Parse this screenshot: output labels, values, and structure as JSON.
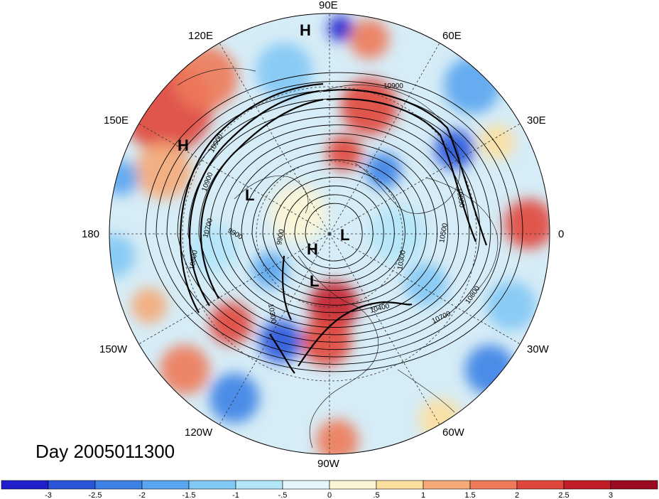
{
  "map": {
    "date_label": "Day 2005011300",
    "longitude_labels": [
      "90E",
      "60E",
      "30E",
      "0",
      "30W",
      "60W",
      "90W",
      "120W",
      "150W",
      "180",
      "150E",
      "120E"
    ],
    "pressure_centers": [
      "H",
      "H",
      "L",
      "L",
      "H",
      "L"
    ],
    "contour_labels": [
      "10900",
      "10900",
      "10900",
      "10800",
      "10700",
      "9900",
      "9900",
      "10300",
      "10800",
      "10500",
      "10300",
      "10400",
      "10700",
      "10800"
    ]
  },
  "colorbar": {
    "ticks": [
      "-3",
      "-2.5",
      "-2",
      "-1.5",
      "-1",
      "-.5",
      "0",
      ".5",
      "1",
      "1.5",
      "2",
      "2.5",
      "3"
    ],
    "colors": [
      "#1e1ecc",
      "#2a55d9",
      "#3c82e6",
      "#5aa5ef",
      "#82c8f5",
      "#b4e6fa",
      "#e6f6fc",
      "#fdf6d6",
      "#fde0a0",
      "#f5aa78",
      "#ee7a5a",
      "#e1463c",
      "#c31e28",
      "#9b0a1e"
    ]
  },
  "colors": {
    "ocean_light": "#e3f1f8",
    "warm_anomaly": "#e8553f",
    "cool_anomaly": "#3f7fd8",
    "contour": "#000000"
  }
}
